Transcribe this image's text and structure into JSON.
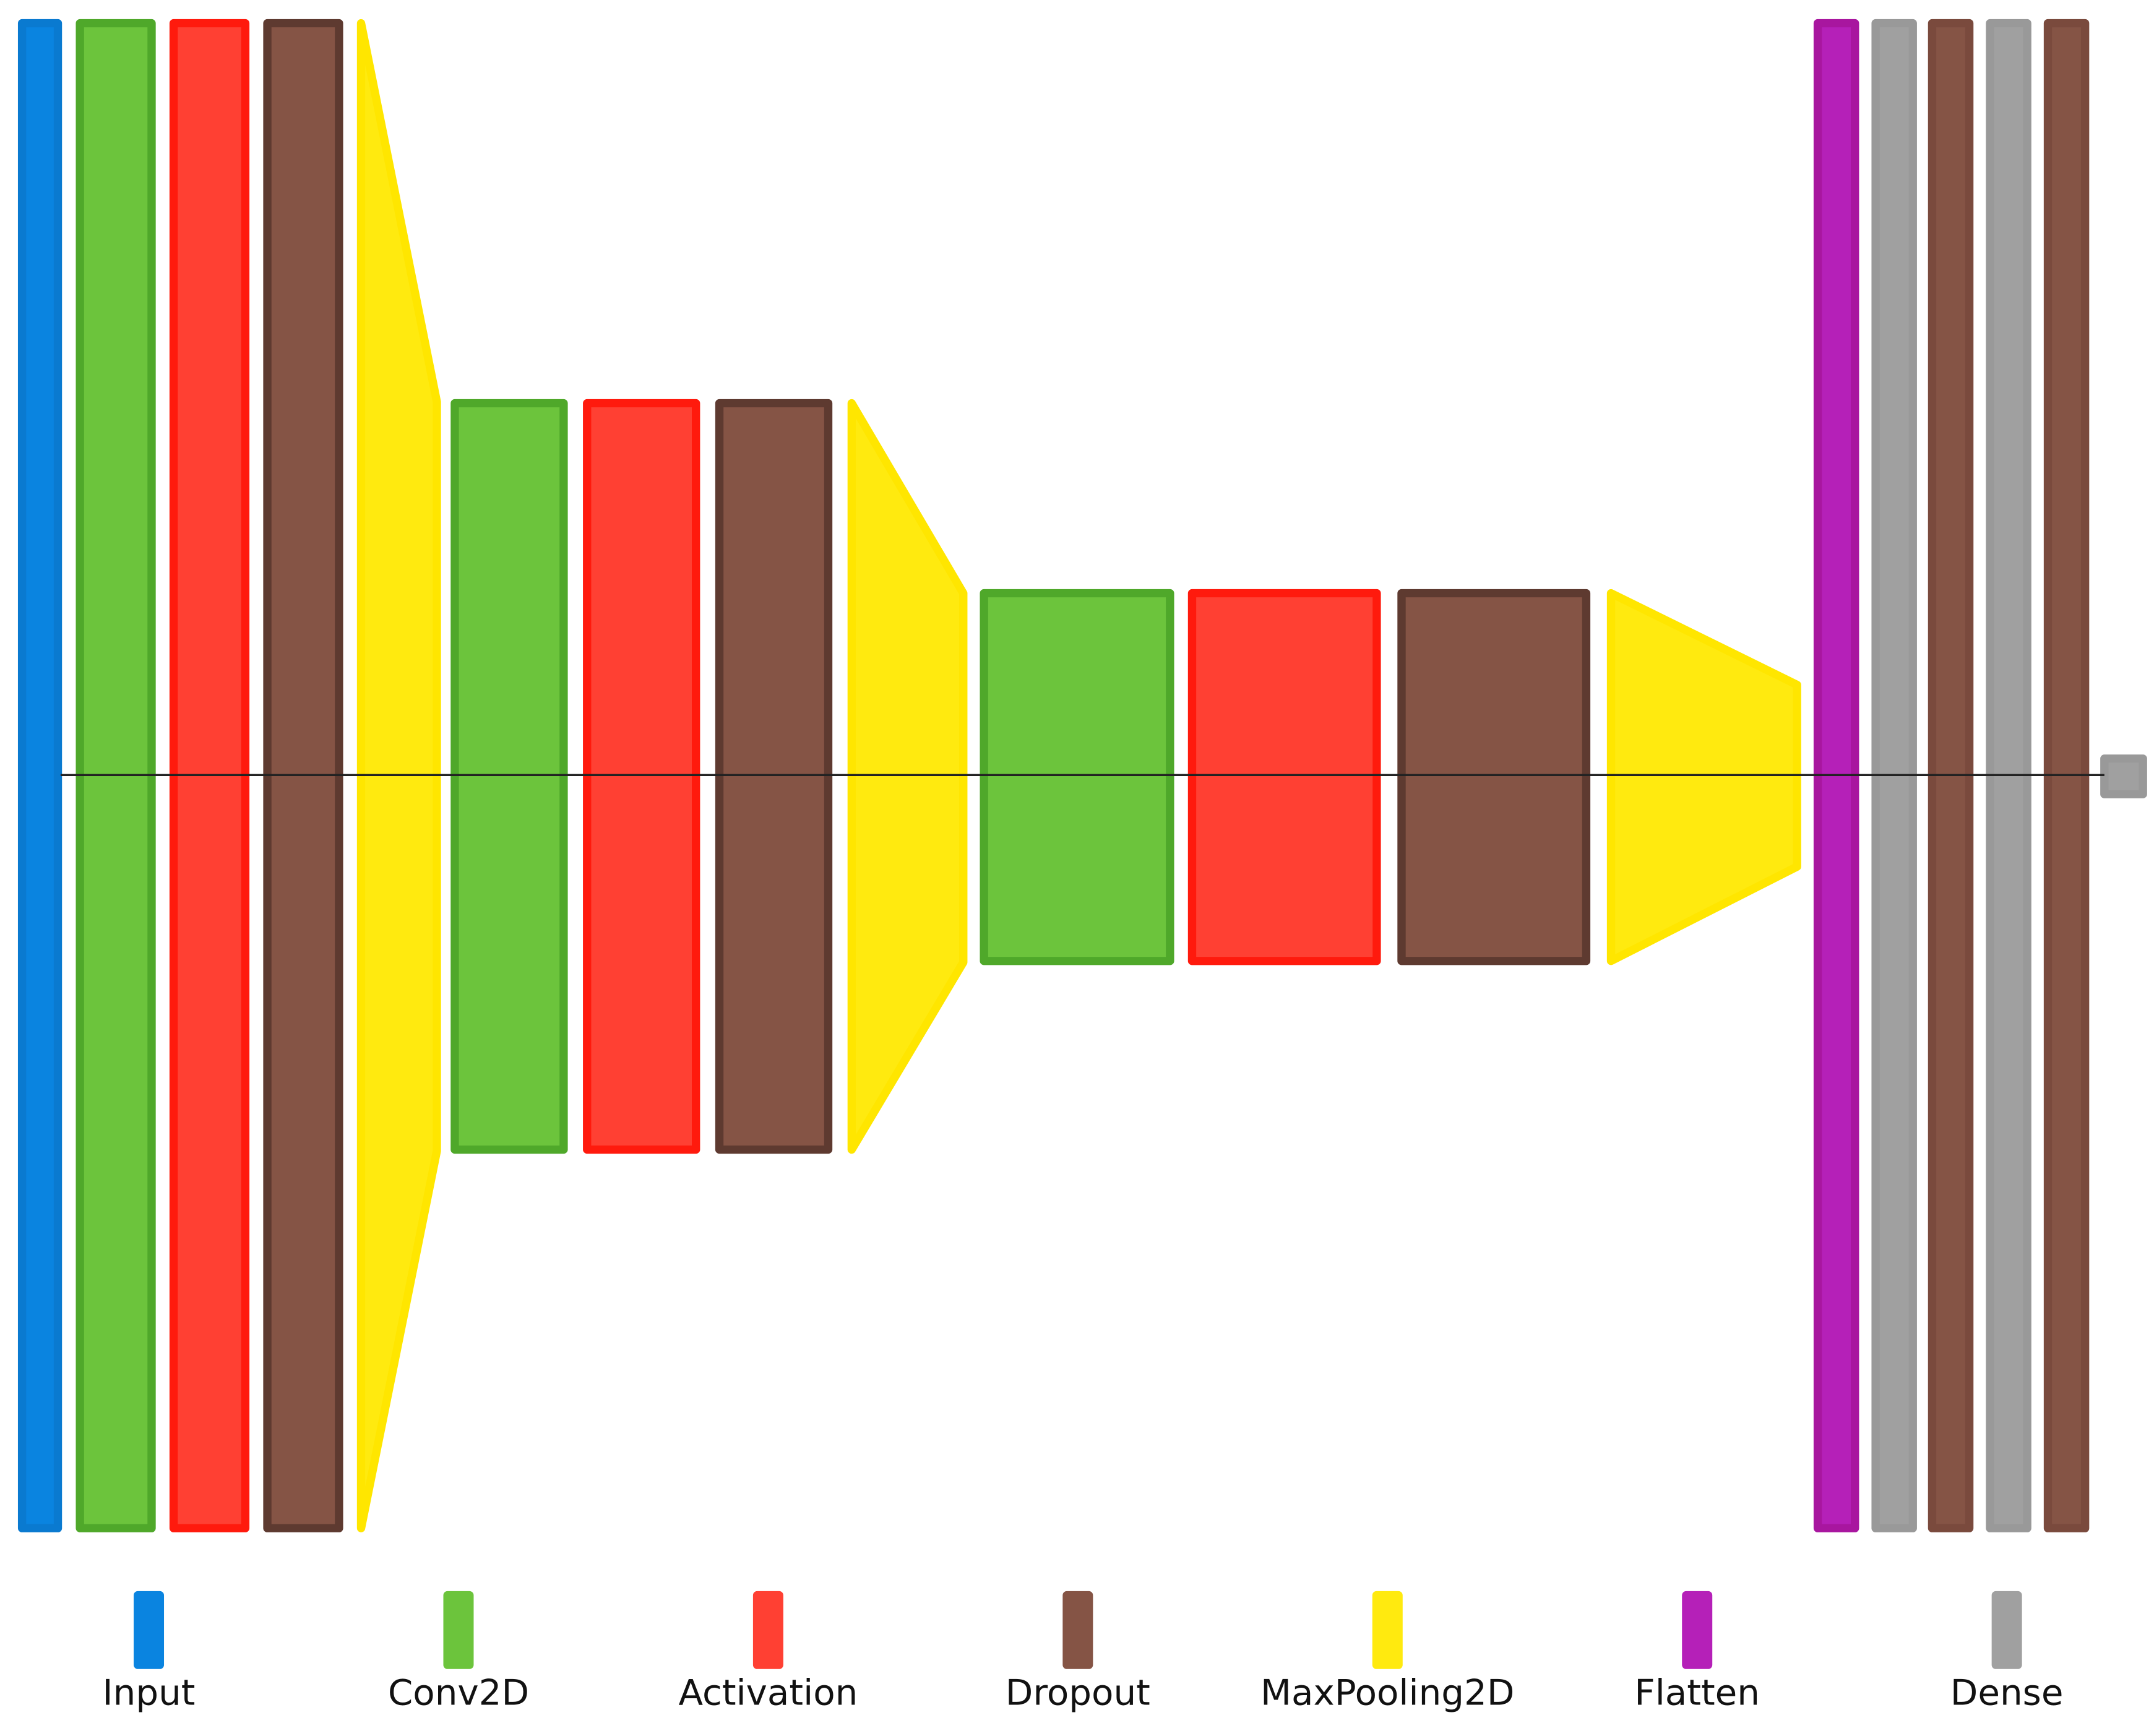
{
  "legend": [
    {
      "label": "Input",
      "color": "#0a84e0"
    },
    {
      "label": "Conv2D",
      "color": "#6cc43c"
    },
    {
      "label": "Activation",
      "color": "#ff4033"
    },
    {
      "label": "Dropout",
      "color": "#855445"
    },
    {
      "label": "MaxPooling2D",
      "color": "#ffea0f"
    },
    {
      "label": "Flatten",
      "color": "#b520b8"
    },
    {
      "label": "Dense",
      "color": "#a0a0a0"
    }
  ]
}
